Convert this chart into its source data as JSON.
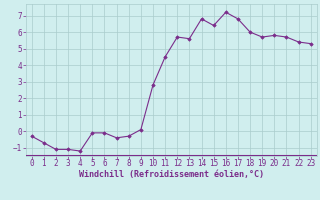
{
  "x": [
    0,
    1,
    2,
    3,
    4,
    5,
    6,
    7,
    8,
    9,
    10,
    11,
    12,
    13,
    14,
    15,
    16,
    17,
    18,
    19,
    20,
    21,
    22,
    23
  ],
  "y": [
    -0.3,
    -0.7,
    -1.1,
    -1.1,
    -1.2,
    -0.1,
    -0.1,
    -0.4,
    -0.3,
    0.1,
    2.8,
    4.5,
    5.7,
    5.6,
    6.8,
    6.4,
    7.2,
    6.8,
    6.0,
    5.7,
    5.8,
    5.7,
    5.4,
    5.3
  ],
  "line_color": "#7b2d8b",
  "marker": "D",
  "marker_size": 1.8,
  "bg_color": "#d0eeee",
  "grid_color": "#aacccc",
  "xlabel": "Windchill (Refroidissement éolien,°C)",
  "ylabel": "",
  "xlim": [
    -0.5,
    23.5
  ],
  "ylim": [
    -1.5,
    7.7
  ],
  "yticks": [
    -1,
    0,
    1,
    2,
    3,
    4,
    5,
    6,
    7
  ],
  "xticks": [
    0,
    1,
    2,
    3,
    4,
    5,
    6,
    7,
    8,
    9,
    10,
    11,
    12,
    13,
    14,
    15,
    16,
    17,
    18,
    19,
    20,
    21,
    22,
    23
  ],
  "font_color": "#7b2d8b",
  "xlabel_fontsize": 6.0,
  "tick_fontsize": 5.5,
  "line_width": 0.8
}
